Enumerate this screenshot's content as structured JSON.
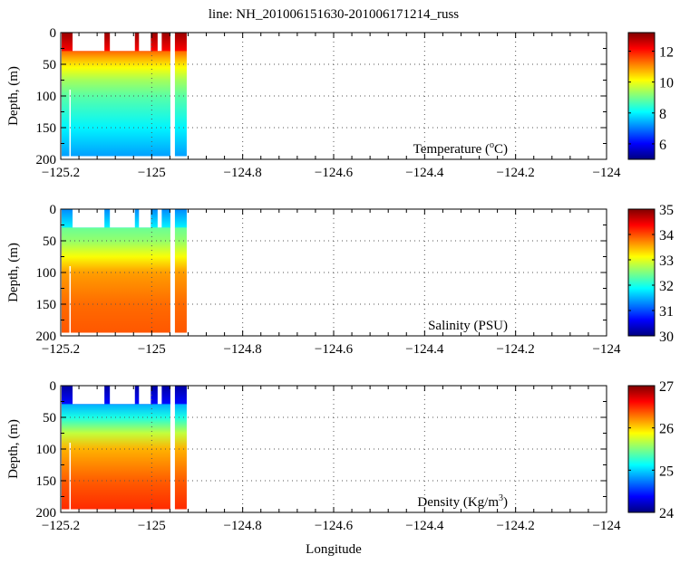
{
  "chart_data": {
    "type": "heatmap",
    "title": "line: NH_201006151630-201006171214_russ",
    "xlabel": "Longitude",
    "xlim": [
      -125.2,
      -124
    ],
    "xticks": [
      -125.2,
      -125,
      -124.8,
      -124.6,
      -124.4,
      -124.2,
      -124
    ],
    "xtick_labels": [
      "−125.2",
      "−125",
      "−124.8",
      "−124.6",
      "−124.4",
      "−124.2",
      "−124"
    ],
    "ylabel": "Depth, (m)",
    "ylim": [
      0,
      200
    ],
    "yticks": [
      0,
      50,
      100,
      150,
      200
    ],
    "ytick_labels": [
      "0",
      "50",
      "100",
      "150",
      "200"
    ],
    "grid": true,
    "surface_casts_lon": [
      [
        -125.198,
        -125.174
      ],
      [
        -125.104,
        -125.092
      ],
      [
        -125.037,
        -125.028
      ],
      [
        -125.002,
        -124.987
      ],
      [
        -124.978,
        -124.959
      ],
      [
        -124.949,
        -124.923
      ]
    ],
    "deep_segments_lon": [
      [
        -125.198,
        -124.959
      ],
      [
        -124.949,
        -124.923
      ]
    ],
    "panels": [
      {
        "name": "temperature",
        "label": "Temperature (",
        "label_unit": "C)",
        "label_sup": "o",
        "clim": [
          5,
          13.2
        ],
        "cbar_ticks": [
          6,
          8,
          10,
          12
        ],
        "profile_depth": [
          0,
          28,
          30,
          40,
          55,
          75,
          100,
          150,
          195
        ],
        "profile_values": [
          13,
          12.2,
          11.3,
          10.8,
          10.1,
          9.4,
          8.8,
          8,
          7.3
        ]
      },
      {
        "name": "salinity",
        "label": "Salinity (PSU)",
        "label_unit": "",
        "label_sup": "",
        "clim": [
          30,
          35
        ],
        "cbar_ticks": [
          30,
          31,
          32,
          33,
          34,
          35
        ],
        "profile_depth": [
          0,
          28,
          30,
          50,
          75,
          100,
          150,
          195
        ],
        "profile_values": [
          31.3,
          31.8,
          32.4,
          32.6,
          33.1,
          33.6,
          33.85,
          33.95
        ]
      },
      {
        "name": "density",
        "label": "Density (Kg/m",
        "label_unit": ")",
        "label_sup": "3",
        "clim": [
          24,
          27
        ],
        "cbar_ticks": [
          24,
          25,
          26,
          27
        ],
        "profile_depth": [
          0,
          28,
          30,
          50,
          75,
          100,
          150,
          195
        ],
        "profile_values": [
          24.1,
          24.4,
          24.9,
          25.2,
          25.7,
          26.1,
          26.35,
          26.5
        ]
      }
    ]
  }
}
